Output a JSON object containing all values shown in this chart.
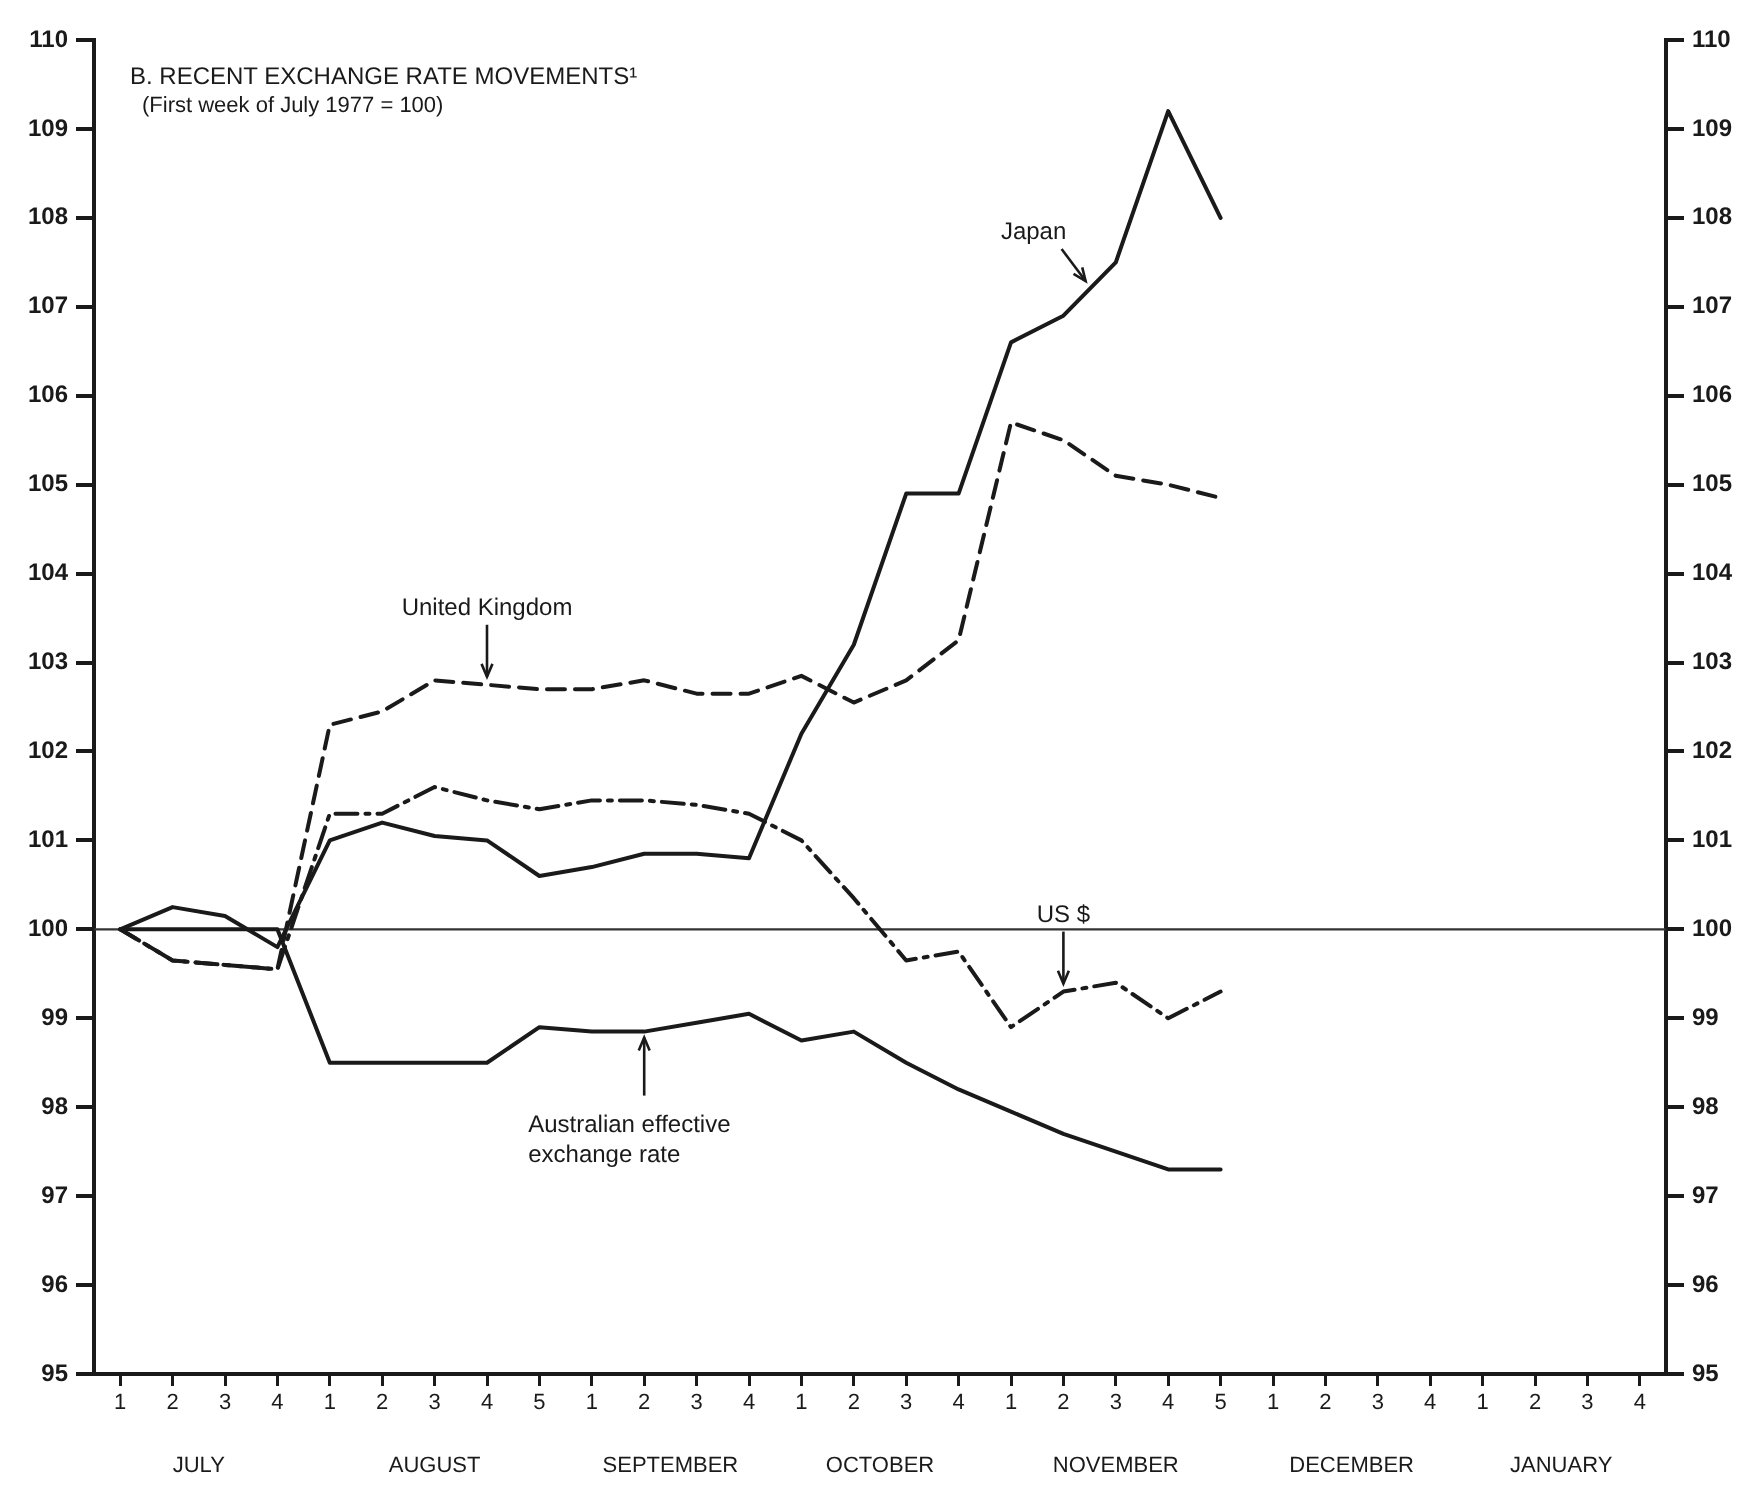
{
  "chart_data": {
    "type": "line",
    "title": "B. RECENT EXCHANGE RATE MOVEMENTS¹",
    "subtitle": "(First week of July 1977 = 100)",
    "categories": [
      "1",
      "2",
      "3",
      "4",
      "1",
      "2",
      "3",
      "4",
      "5",
      "1",
      "2",
      "3",
      "4",
      "1",
      "2",
      "3",
      "4",
      "1",
      "2",
      "3",
      "4",
      "5",
      "1",
      "2",
      "3",
      "4",
      "1",
      "2",
      "3",
      "4"
    ],
    "series": [
      {
        "name": "Japan",
        "color": "#1a1a1a",
        "line_style": "solid",
        "values": [
          100,
          100.25,
          100.15,
          99.8,
          101.0,
          101.2,
          101.05,
          101.0,
          100.6,
          100.7,
          100.85,
          100.85,
          100.8,
          102.2,
          103.2,
          104.9,
          104.9,
          106.6,
          106.9,
          107.5,
          109.2,
          108.0,
          null,
          null,
          null,
          null,
          null,
          null,
          null,
          null
        ]
      },
      {
        "name": "United Kingdom",
        "color": "#1a1a1a",
        "line_style": "dashed",
        "values": [
          100,
          99.65,
          99.6,
          99.55,
          102.3,
          102.45,
          102.8,
          102.75,
          102.7,
          102.7,
          102.8,
          102.65,
          102.65,
          102.85,
          102.55,
          102.8,
          103.25,
          105.7,
          105.5,
          105.1,
          105.0,
          104.85,
          null,
          null,
          null,
          null,
          null,
          null,
          null,
          null
        ]
      },
      {
        "name": "US $",
        "color": "#1a1a1a",
        "line_style": "dashdot",
        "values": [
          100,
          99.65,
          99.6,
          99.55,
          101.3,
          101.3,
          101.6,
          101.45,
          101.35,
          101.45,
          101.45,
          101.4,
          101.3,
          101.0,
          100.35,
          99.65,
          99.75,
          98.9,
          99.3,
          99.4,
          99.0,
          99.3,
          null,
          null,
          null,
          null,
          null,
          null,
          null,
          null
        ]
      },
      {
        "name": "Australian effective exchange rate",
        "color": "#1a1a1a",
        "line_style": "solid",
        "values": [
          100,
          100,
          100,
          100,
          98.5,
          98.5,
          98.5,
          98.5,
          98.9,
          98.85,
          98.85,
          98.95,
          99.05,
          98.75,
          98.85,
          98.5,
          98.2,
          97.95,
          97.7,
          97.5,
          97.3,
          97.3,
          null,
          null,
          null,
          null,
          null,
          null,
          null,
          null
        ]
      }
    ],
    "ylim": [
      95,
      110
    ],
    "yticks": [
      95,
      96,
      97,
      98,
      99,
      100,
      101,
      102,
      103,
      104,
      105,
      106,
      107,
      108,
      109,
      110
    ],
    "y2lim": [
      95,
      110
    ],
    "y2ticks": [
      95,
      96,
      97,
      98,
      99,
      100,
      101,
      102,
      103,
      104,
      105,
      106,
      107,
      108,
      109,
      110
    ],
    "ref_lines": [
      {
        "axis": "y",
        "value": 100,
        "color": "#333333"
      }
    ],
    "annotations": [
      "JULY",
      "AUGUST",
      "SEPTEMBER",
      "OCTOBER",
      "NOVEMBER",
      "DECEMBER",
      "JANUARY"
    ],
    "grid": false,
    "legend": false
  }
}
